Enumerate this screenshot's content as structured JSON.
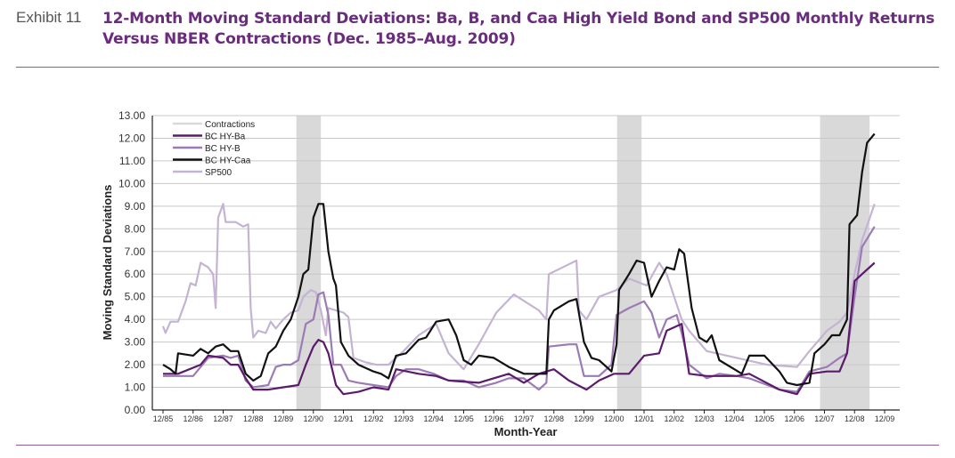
{
  "header": {
    "exhibit": "Exhibit 11",
    "title": "12-Month Moving Standard Deviations: Ba, B, and Caa High Yield Bond and SP500 Monthly Returns Versus NBER Contractions (Dec. 1985–Aug. 2009)"
  },
  "chart_data": {
    "type": "line",
    "title": "",
    "xlabel": "Month-Year",
    "ylabel": "Moving Standard Deviations",
    "ylim": [
      0,
      13
    ],
    "xlim": [
      "1985-12",
      "2009-12"
    ],
    "yticks": [
      "0.00",
      "1.00",
      "2.00",
      "3.00",
      "4.00",
      "5.00",
      "6.00",
      "7.00",
      "8.00",
      "9.00",
      "10.00",
      "11.00",
      "12.00",
      "13.00"
    ],
    "xticks": [
      "12/85",
      "12/86",
      "12/87",
      "12/88",
      "12/89",
      "12/90",
      "12/91",
      "12/92",
      "12/93",
      "12/94",
      "12/95",
      "12/96",
      "12/97",
      "12/98",
      "12/99",
      "12/00",
      "12/01",
      "12/02",
      "12/03",
      "12/04",
      "12/05",
      "12/06",
      "12/07",
      "12/08",
      "12/09"
    ],
    "grid": "horizontal",
    "legend_position": "top-left",
    "contractions": {
      "name": "Contractions",
      "color": "#d9d9d9",
      "periods": [
        [
          "1990-07",
          "1991-03"
        ],
        [
          "2001-03",
          "2001-11"
        ],
        [
          "2007-12",
          "2009-06"
        ]
      ]
    },
    "series": [
      {
        "name": "BC HY-Ba",
        "color": "#5c1a6b",
        "points": [
          [
            "1985-12",
            1.6
          ],
          [
            "1986-06",
            1.6
          ],
          [
            "1987-03",
            2.0
          ],
          [
            "1987-06",
            2.4
          ],
          [
            "1987-12",
            2.3
          ],
          [
            "1988-03",
            2.0
          ],
          [
            "1988-06",
            2.0
          ],
          [
            "1988-09",
            1.4
          ],
          [
            "1988-12",
            0.9
          ],
          [
            "1989-06",
            0.9
          ],
          [
            "1989-12",
            1.0
          ],
          [
            "1990-06",
            1.1
          ],
          [
            "1990-09",
            2.0
          ],
          [
            "1990-12",
            2.8
          ],
          [
            "1991-02",
            3.1
          ],
          [
            "1991-04",
            3.0
          ],
          [
            "1991-06",
            2.5
          ],
          [
            "1991-09",
            1.1
          ],
          [
            "1991-12",
            0.7
          ],
          [
            "1992-06",
            0.8
          ],
          [
            "1992-12",
            1.0
          ],
          [
            "1993-06",
            0.9
          ],
          [
            "1993-09",
            1.8
          ],
          [
            "1994-06",
            1.6
          ],
          [
            "1995-01",
            1.5
          ],
          [
            "1995-06",
            1.3
          ],
          [
            "1996-06",
            1.2
          ],
          [
            "1997-06",
            1.6
          ],
          [
            "1997-12",
            1.2
          ],
          [
            "1998-06",
            1.6
          ],
          [
            "1998-12",
            1.8
          ],
          [
            "1999-06",
            1.3
          ],
          [
            "2000-01",
            0.9
          ],
          [
            "2000-06",
            1.3
          ],
          [
            "2000-12",
            1.6
          ],
          [
            "2001-06",
            1.6
          ],
          [
            "2001-12",
            2.4
          ],
          [
            "2002-06",
            2.5
          ],
          [
            "2002-09",
            3.5
          ],
          [
            "2003-03",
            3.8
          ],
          [
            "2003-06",
            1.6
          ],
          [
            "2004-01",
            1.5
          ],
          [
            "2005-01",
            1.5
          ],
          [
            "2005-06",
            1.6
          ],
          [
            "2006-06",
            0.9
          ],
          [
            "2007-01",
            0.7
          ],
          [
            "2007-06",
            1.6
          ],
          [
            "2008-01",
            1.7
          ],
          [
            "2008-06",
            1.7
          ],
          [
            "2008-09",
            2.5
          ],
          [
            "2008-12",
            5.7
          ],
          [
            "2009-03",
            6.0
          ],
          [
            "2009-08",
            6.5
          ]
        ]
      },
      {
        "name": "BC HY-B",
        "color": "#9b7bb5",
        "points": [
          [
            "1985-12",
            1.5
          ],
          [
            "1986-06",
            1.5
          ],
          [
            "1986-12",
            1.5
          ],
          [
            "1987-06",
            2.3
          ],
          [
            "1987-12",
            2.4
          ],
          [
            "1988-03",
            2.3
          ],
          [
            "1988-06",
            2.4
          ],
          [
            "1988-09",
            1.3
          ],
          [
            "1988-12",
            1.0
          ],
          [
            "1989-06",
            1.1
          ],
          [
            "1989-09",
            1.9
          ],
          [
            "1989-12",
            2.0
          ],
          [
            "1990-03",
            2.0
          ],
          [
            "1990-06",
            2.2
          ],
          [
            "1990-09",
            3.8
          ],
          [
            "1990-12",
            4.0
          ],
          [
            "1991-02",
            5.1
          ],
          [
            "1991-04",
            5.2
          ],
          [
            "1991-06",
            4.2
          ],
          [
            "1991-08",
            2.0
          ],
          [
            "1991-11",
            2.0
          ],
          [
            "1992-02",
            1.3
          ],
          [
            "1992-06",
            1.2
          ],
          [
            "1992-12",
            1.1
          ],
          [
            "1993-06",
            1.0
          ],
          [
            "1993-09",
            1.5
          ],
          [
            "1994-01",
            1.8
          ],
          [
            "1994-06",
            1.8
          ],
          [
            "1994-12",
            1.6
          ],
          [
            "1995-06",
            1.3
          ],
          [
            "1995-12",
            1.3
          ],
          [
            "1996-06",
            1.0
          ],
          [
            "1997-01",
            1.2
          ],
          [
            "1997-06",
            1.4
          ],
          [
            "1997-12",
            1.4
          ],
          [
            "1998-06",
            0.9
          ],
          [
            "1998-09",
            1.2
          ],
          [
            "1998-10",
            2.8
          ],
          [
            "1999-06",
            2.9
          ],
          [
            "1999-09",
            2.9
          ],
          [
            "1999-12",
            1.5
          ],
          [
            "2000-06",
            1.5
          ],
          [
            "2000-11",
            2.0
          ],
          [
            "2001-01",
            4.2
          ],
          [
            "2001-06",
            4.5
          ],
          [
            "2001-12",
            4.8
          ],
          [
            "2002-03",
            4.3
          ],
          [
            "2002-06",
            3.2
          ],
          [
            "2002-09",
            4.0
          ],
          [
            "2003-01",
            4.2
          ],
          [
            "2003-03",
            3.4
          ],
          [
            "2003-06",
            2.0
          ],
          [
            "2004-01",
            1.4
          ],
          [
            "2004-06",
            1.6
          ],
          [
            "2005-01",
            1.5
          ],
          [
            "2005-06",
            1.4
          ],
          [
            "2006-06",
            0.9
          ],
          [
            "2007-01",
            0.8
          ],
          [
            "2007-06",
            1.7
          ],
          [
            "2008-01",
            1.9
          ],
          [
            "2008-06",
            2.3
          ],
          [
            "2008-09",
            2.5
          ],
          [
            "2008-12",
            5.0
          ],
          [
            "2009-03",
            7.2
          ],
          [
            "2009-08",
            8.1
          ]
        ]
      },
      {
        "name": "BC HY-Caa",
        "color": "#111111",
        "points": [
          [
            "1985-12",
            2.0
          ],
          [
            "1986-03",
            1.8
          ],
          [
            "1986-05",
            1.6
          ],
          [
            "1986-06",
            2.5
          ],
          [
            "1986-12",
            2.4
          ],
          [
            "1987-03",
            2.7
          ],
          [
            "1987-06",
            2.5
          ],
          [
            "1987-09",
            2.8
          ],
          [
            "1987-12",
            2.9
          ],
          [
            "1988-03",
            2.6
          ],
          [
            "1988-06",
            2.6
          ],
          [
            "1988-09",
            1.6
          ],
          [
            "1988-12",
            1.3
          ],
          [
            "1989-03",
            1.5
          ],
          [
            "1989-06",
            2.5
          ],
          [
            "1989-09",
            2.8
          ],
          [
            "1989-12",
            3.5
          ],
          [
            "1990-03",
            4.0
          ],
          [
            "1990-06",
            5.0
          ],
          [
            "1990-08",
            6.0
          ],
          [
            "1990-10",
            6.2
          ],
          [
            "1990-12",
            8.5
          ],
          [
            "1991-02",
            9.1
          ],
          [
            "1991-04",
            9.1
          ],
          [
            "1991-06",
            7.0
          ],
          [
            "1991-08",
            5.8
          ],
          [
            "1991-09",
            5.5
          ],
          [
            "1991-11",
            3.0
          ],
          [
            "1992-02",
            2.4
          ],
          [
            "1992-06",
            2.0
          ],
          [
            "1992-12",
            1.7
          ],
          [
            "1993-03",
            1.6
          ],
          [
            "1993-06",
            1.4
          ],
          [
            "1993-09",
            2.4
          ],
          [
            "1994-01",
            2.5
          ],
          [
            "1994-06",
            3.1
          ],
          [
            "1994-09",
            3.2
          ],
          [
            "1995-01",
            3.9
          ],
          [
            "1995-06",
            4.0
          ],
          [
            "1995-09",
            3.3
          ],
          [
            "1995-12",
            2.2
          ],
          [
            "1996-03",
            2.0
          ],
          [
            "1996-06",
            2.4
          ],
          [
            "1996-12",
            2.3
          ],
          [
            "1997-06",
            1.9
          ],
          [
            "1997-12",
            1.6
          ],
          [
            "1998-06",
            1.6
          ],
          [
            "1998-09",
            1.6
          ],
          [
            "1998-10",
            4.0
          ],
          [
            "1998-12",
            4.4
          ],
          [
            "1999-06",
            4.8
          ],
          [
            "1999-09",
            4.9
          ],
          [
            "1999-12",
            3.0
          ],
          [
            "2000-03",
            2.3
          ],
          [
            "2000-06",
            2.2
          ],
          [
            "2000-09",
            1.9
          ],
          [
            "2000-11",
            1.7
          ],
          [
            "2001-01",
            2.9
          ],
          [
            "2001-02",
            5.3
          ],
          [
            "2001-06",
            6.0
          ],
          [
            "2001-09",
            6.6
          ],
          [
            "2001-12",
            6.5
          ],
          [
            "2002-03",
            5.0
          ],
          [
            "2002-06",
            5.7
          ],
          [
            "2002-09",
            6.3
          ],
          [
            "2002-12",
            6.2
          ],
          [
            "2003-02",
            7.1
          ],
          [
            "2003-04",
            6.9
          ],
          [
            "2003-07",
            4.5
          ],
          [
            "2003-10",
            3.2
          ],
          [
            "2004-01",
            3.0
          ],
          [
            "2004-03",
            3.3
          ],
          [
            "2004-06",
            2.2
          ],
          [
            "2004-12",
            1.8
          ],
          [
            "2005-03",
            1.6
          ],
          [
            "2005-06",
            2.4
          ],
          [
            "2005-12",
            2.4
          ],
          [
            "2006-06",
            1.7
          ],
          [
            "2006-09",
            1.2
          ],
          [
            "2007-01",
            1.1
          ],
          [
            "2007-06",
            1.2
          ],
          [
            "2007-08",
            2.5
          ],
          [
            "2007-12",
            2.9
          ],
          [
            "2008-03",
            3.3
          ],
          [
            "2008-06",
            3.3
          ],
          [
            "2008-09",
            4.0
          ],
          [
            "2008-10",
            8.2
          ],
          [
            "2009-01",
            8.6
          ],
          [
            "2009-03",
            10.5
          ],
          [
            "2009-05",
            11.8
          ],
          [
            "2009-08",
            12.2
          ]
        ]
      },
      {
        "name": "SP500",
        "color": "#c4b3d3",
        "points": [
          [
            "1985-12",
            3.7
          ],
          [
            "1986-01",
            3.4
          ],
          [
            "1986-03",
            3.9
          ],
          [
            "1986-06",
            3.9
          ],
          [
            "1986-09",
            4.8
          ],
          [
            "1986-11",
            5.6
          ],
          [
            "1987-01",
            5.5
          ],
          [
            "1987-03",
            6.5
          ],
          [
            "1987-06",
            6.3
          ],
          [
            "1987-08",
            6.0
          ],
          [
            "1987-09",
            4.5
          ],
          [
            "1987-10",
            8.5
          ],
          [
            "1987-12",
            9.1
          ],
          [
            "1988-01",
            8.3
          ],
          [
            "1988-05",
            8.3
          ],
          [
            "1988-08",
            8.1
          ],
          [
            "1988-10",
            8.2
          ],
          [
            "1988-11",
            4.5
          ],
          [
            "1988-12",
            3.2
          ],
          [
            "1989-02",
            3.5
          ],
          [
            "1989-05",
            3.4
          ],
          [
            "1989-07",
            3.9
          ],
          [
            "1989-09",
            3.6
          ],
          [
            "1989-12",
            4.0
          ],
          [
            "1990-03",
            4.3
          ],
          [
            "1990-06",
            4.4
          ],
          [
            "1990-08",
            5.0
          ],
          [
            "1990-11",
            5.3
          ],
          [
            "1991-01",
            5.2
          ],
          [
            "1991-03",
            4.4
          ],
          [
            "1991-05",
            3.3
          ],
          [
            "1991-06",
            4.5
          ],
          [
            "1991-09",
            4.4
          ],
          [
            "1991-12",
            4.3
          ],
          [
            "1992-02",
            4.1
          ],
          [
            "1992-04",
            2.3
          ],
          [
            "1992-09",
            2.1
          ],
          [
            "1993-01",
            2.0
          ],
          [
            "1993-06",
            2.0
          ],
          [
            "1993-12",
            2.6
          ],
          [
            "1994-06",
            3.3
          ],
          [
            "1995-01",
            3.8
          ],
          [
            "1995-06",
            2.5
          ],
          [
            "1995-12",
            1.8
          ],
          [
            "1996-06",
            2.9
          ],
          [
            "1997-01",
            4.3
          ],
          [
            "1997-08",
            5.1
          ],
          [
            "1998-06",
            4.4
          ],
          [
            "1998-09",
            4.0
          ],
          [
            "1998-10",
            6.0
          ],
          [
            "1999-09",
            6.6
          ],
          [
            "1999-10",
            4.4
          ],
          [
            "2000-01",
            4.0
          ],
          [
            "2000-06",
            5.0
          ],
          [
            "2001-01",
            5.3
          ],
          [
            "2001-06",
            5.8
          ],
          [
            "2002-01",
            5.5
          ],
          [
            "2002-06",
            6.5
          ],
          [
            "2002-09",
            6.0
          ],
          [
            "2003-03",
            4.0
          ],
          [
            "2003-06",
            3.5
          ],
          [
            "2004-01",
            2.6
          ],
          [
            "2005-01",
            2.3
          ],
          [
            "2006-01",
            2.0
          ],
          [
            "2007-01",
            1.9
          ],
          [
            "2007-06",
            2.6
          ],
          [
            "2008-01",
            3.5
          ],
          [
            "2008-06",
            3.9
          ],
          [
            "2008-09",
            4.3
          ],
          [
            "2008-12",
            6.0
          ],
          [
            "2009-03",
            7.5
          ],
          [
            "2009-08",
            9.1
          ]
        ]
      }
    ]
  }
}
